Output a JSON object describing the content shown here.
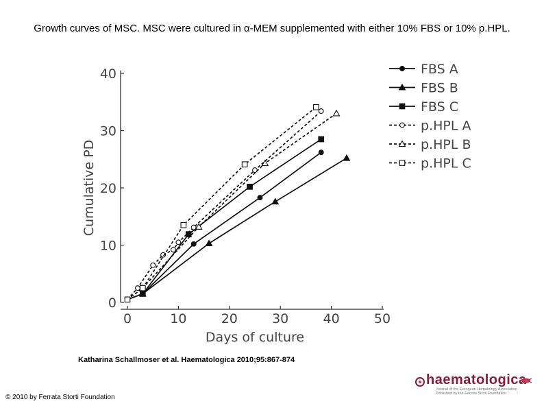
{
  "title": "Growth curves of MSC. MSC were cultured in α-MEM supplemented with either 10% FBS or 10% p.HPL.",
  "citation": "Katharina Schallmoser et al. Haematologica 2010;95:867-874",
  "copyright": "© 2010 by Ferrata Storti Foundation",
  "logo": {
    "word": "haematologica",
    "sub": "Journal of the European Hematology Association · Published by the Ferrata Storti Foundation"
  },
  "chart_data": {
    "type": "line",
    "title": "",
    "xlabel": "Days of culture",
    "ylabel": "Cumulative PD",
    "xlim": [
      0,
      50
    ],
    "ylim": [
      0,
      40
    ],
    "xticks": [
      0,
      10,
      20,
      30,
      40,
      50
    ],
    "yticks": [
      0,
      10,
      20,
      30,
      40
    ],
    "legend_position": "top-right",
    "grid": false,
    "series": [
      {
        "name": "FBS A",
        "line": "solid",
        "marker": "filled-circle",
        "x": [
          0,
          3,
          13,
          26,
          38
        ],
        "y": [
          0.5,
          1.5,
          10.2,
          18.3,
          26.2
        ]
      },
      {
        "name": "FBS B",
        "line": "solid",
        "marker": "filled-triangle",
        "x": [
          0,
          3,
          16,
          29,
          43
        ],
        "y": [
          0.5,
          1.5,
          10.3,
          17.6,
          25.2
        ]
      },
      {
        "name": "FBS C",
        "line": "solid",
        "marker": "filled-square",
        "x": [
          0,
          3,
          12,
          24,
          38
        ],
        "y": [
          0.5,
          1.5,
          11.9,
          20.2,
          28.5
        ]
      },
      {
        "name": "p.HPL A",
        "line": "dashed",
        "marker": "open-circle",
        "x": [
          0,
          2,
          5,
          7,
          9,
          10,
          13,
          25,
          38
        ],
        "y": [
          0.5,
          2.5,
          6.5,
          8.3,
          9.2,
          10.5,
          13.1,
          23.1,
          33.4
        ]
      },
      {
        "name": "p.HPL B",
        "line": "dashed",
        "marker": "open-triangle",
        "x": [
          0,
          3,
          14,
          27,
          41
        ],
        "y": [
          0.5,
          2.5,
          13.2,
          24.3,
          33.0
        ]
      },
      {
        "name": "p.HPL C",
        "line": "dashed",
        "marker": "open-square",
        "x": [
          0,
          3,
          11,
          23,
          37
        ],
        "y": [
          0.5,
          2.5,
          13.5,
          24.1,
          34.1
        ]
      }
    ]
  }
}
